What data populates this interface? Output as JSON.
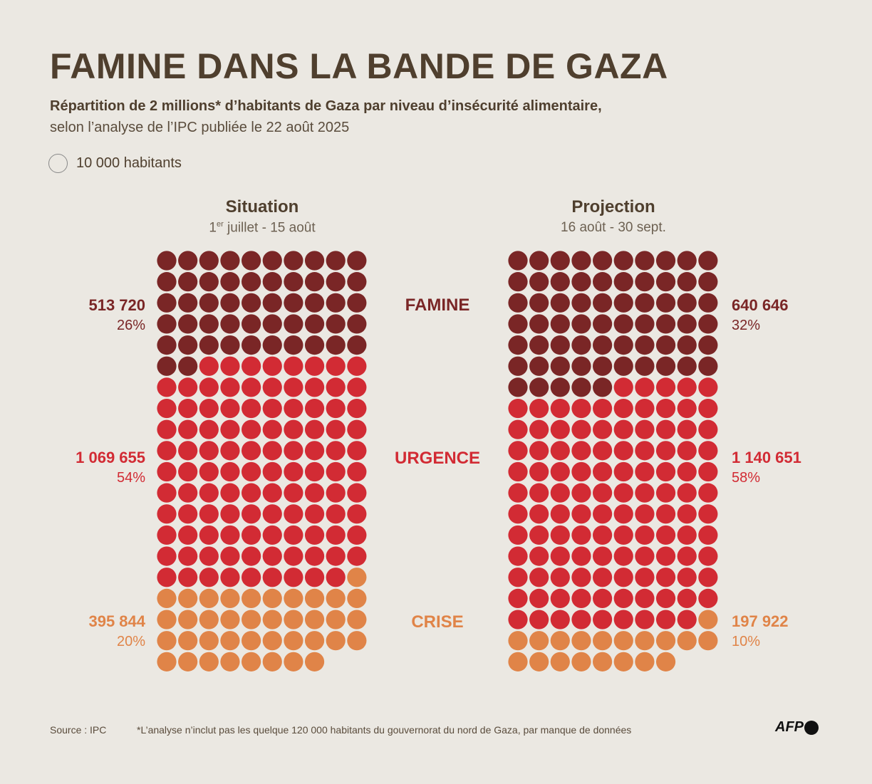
{
  "title": "FAMINE DANS LA BANDE DE GAZA",
  "subtitle_bold": "Répartition de 2 millions* d’habitants de Gaza par niveau d’insécurité alimentaire,",
  "subtitle": "selon l’analyse de l’IPC publiée le 22 août 2025",
  "legend": "10 000 habitants",
  "source": "Source : IPC",
  "footnote": "*L’analyse n’inclut pas les quelque 120 000 habitants du gouvernorat du nord de Gaza, par manque de données",
  "logo": "AFP",
  "chart_data": {
    "type": "waffle",
    "unit": 10000,
    "columns": 10,
    "categories": [
      "FAMINE",
      "URGENCE",
      "CRISE"
    ],
    "colors": {
      "FAMINE": "#7a2626",
      "URGENCE": "#d22b34",
      "CRISE": "#e08448"
    },
    "panels": [
      {
        "title": "Situation",
        "period_sup": "1",
        "period_sup_text": "er",
        "period": " juillet - 15 août",
        "values": [
          513720,
          1069655,
          395844
        ],
        "percent_labels": [
          "26%",
          "54%",
          "20%"
        ],
        "value_labels": [
          "513 720",
          "1 069 655",
          "395 844"
        ]
      },
      {
        "title": "Projection",
        "period_sup": "",
        "period_sup_text": "",
        "period": "16 août - 30 sept.",
        "values": [
          640646,
          1140651,
          197922
        ],
        "percent_labels": [
          "32%",
          "58%",
          "10%"
        ],
        "value_labels": [
          "640 646",
          "1 140 651",
          "197 922"
        ]
      }
    ]
  }
}
